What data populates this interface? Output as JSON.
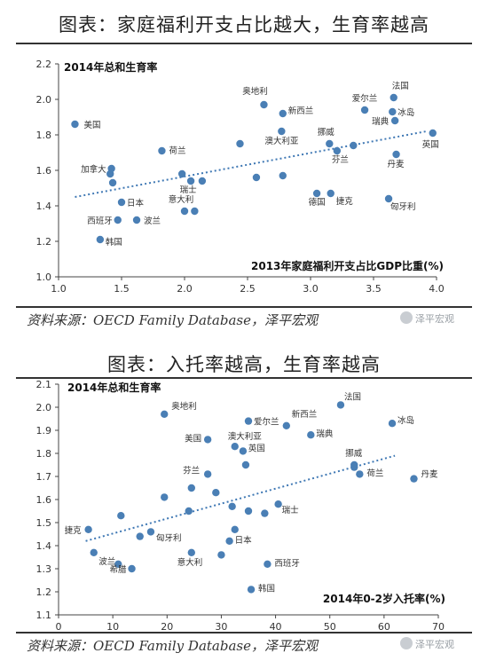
{
  "panel1": {
    "title": "图表：家庭福利开支占比越大，生育率越高",
    "source": "资料来源：OECD Family Database，泽平宏观"
  },
  "panel2": {
    "title": "图表：入托率越高，生育率越高",
    "source": "资料来源：OECD Family Database，泽平宏观"
  },
  "watermark": "泽平宏观",
  "colors": {
    "point": "#4a7fb5",
    "trend": "#3f78b4",
    "axis": "#444444"
  },
  "chart_data": [
    {
      "type": "scatter",
      "ylabel": "2014年总和生育率",
      "xlabel": "2013年家庭福利开支占比GDP比重(%)",
      "xlim": [
        1.0,
        4.0
      ],
      "ylim": [
        1.0,
        2.2
      ],
      "xticks": [
        "1.0",
        "1.5",
        "2.0",
        "2.5",
        "3.0",
        "3.5",
        "4.0"
      ],
      "yticks": [
        "1.0",
        "1.2",
        "1.4",
        "1.6",
        "1.8",
        "2.0",
        "2.2"
      ],
      "trendline": {
        "x": [
          1.13,
          3.92
        ],
        "y": [
          1.45,
          1.82
        ]
      },
      "points": [
        {
          "x": 1.13,
          "y": 1.86,
          "label": "美国"
        },
        {
          "x": 1.42,
          "y": 1.61,
          "label": "加拿大"
        },
        {
          "x": 1.41,
          "y": 1.58,
          "label": ""
        },
        {
          "x": 1.43,
          "y": 1.53,
          "label": ""
        },
        {
          "x": 1.5,
          "y": 1.42,
          "label": "日本"
        },
        {
          "x": 1.47,
          "y": 1.32,
          "label": "西班牙"
        },
        {
          "x": 1.33,
          "y": 1.21,
          "label": "韩国"
        },
        {
          "x": 1.62,
          "y": 1.32,
          "label": "波兰"
        },
        {
          "x": 1.82,
          "y": 1.71,
          "label": "荷兰"
        },
        {
          "x": 1.98,
          "y": 1.58,
          "label": ""
        },
        {
          "x": 2.05,
          "y": 1.54,
          "label": "瑞士"
        },
        {
          "x": 2.14,
          "y": 1.54,
          "label": ""
        },
        {
          "x": 2.0,
          "y": 1.37,
          "label": "意大利"
        },
        {
          "x": 2.08,
          "y": 1.37,
          "label": ""
        },
        {
          "x": 2.44,
          "y": 1.75,
          "label": ""
        },
        {
          "x": 2.57,
          "y": 1.56,
          "label": ""
        },
        {
          "x": 2.63,
          "y": 1.97,
          "label": "奥地利"
        },
        {
          "x": 2.78,
          "y": 1.92,
          "label": "新西兰"
        },
        {
          "x": 2.77,
          "y": 1.82,
          "label": "澳大利亚"
        },
        {
          "x": 2.78,
          "y": 1.57,
          "label": ""
        },
        {
          "x": 3.05,
          "y": 1.47,
          "label": "德国"
        },
        {
          "x": 3.16,
          "y": 1.47,
          "label": "捷克"
        },
        {
          "x": 3.15,
          "y": 1.75,
          "label": "挪威"
        },
        {
          "x": 3.21,
          "y": 1.71,
          "label": "芬兰"
        },
        {
          "x": 3.34,
          "y": 1.74,
          "label": ""
        },
        {
          "x": 3.43,
          "y": 1.94,
          "label": "爱尔兰"
        },
        {
          "x": 3.66,
          "y": 2.01,
          "label": "法国"
        },
        {
          "x": 3.65,
          "y": 1.93,
          "label": "冰岛"
        },
        {
          "x": 3.67,
          "y": 1.88,
          "label": "瑞典"
        },
        {
          "x": 3.68,
          "y": 1.69,
          "label": "丹麦"
        },
        {
          "x": 3.62,
          "y": 1.44,
          "label": "匈牙利"
        },
        {
          "x": 3.97,
          "y": 1.81,
          "label": "英国"
        }
      ]
    },
    {
      "type": "scatter",
      "ylabel": "2014年总和生育率",
      "xlabel": "2014年0-2岁入托率(%)",
      "xlim": [
        0,
        70
      ],
      "ylim": [
        1.1,
        2.1
      ],
      "xticks": [
        "0",
        "10",
        "20",
        "30",
        "40",
        "50",
        "60",
        "70"
      ],
      "yticks": [
        "1.1",
        "1.2",
        "1.3",
        "1.4",
        "1.5",
        "1.6",
        "1.7",
        "1.8",
        "1.9",
        "2.0",
        "2.1"
      ],
      "trendline": {
        "x": [
          5,
          62
        ],
        "y": [
          1.42,
          1.79
        ]
      },
      "points": [
        {
          "x": 5.5,
          "y": 1.47,
          "label": "捷克"
        },
        {
          "x": 6.5,
          "y": 1.37,
          "label": ""
        },
        {
          "x": 11.0,
          "y": 1.32,
          "label": "波兰"
        },
        {
          "x": 11.5,
          "y": 1.53,
          "label": ""
        },
        {
          "x": 13.5,
          "y": 1.3,
          "label": "希腊"
        },
        {
          "x": 15.0,
          "y": 1.44,
          "label": ""
        },
        {
          "x": 17.0,
          "y": 1.46,
          "label": "匈牙利"
        },
        {
          "x": 19.5,
          "y": 1.61,
          "label": ""
        },
        {
          "x": 19.5,
          "y": 1.97,
          "label": "奥地利"
        },
        {
          "x": 24.0,
          "y": 1.55,
          "label": ""
        },
        {
          "x": 24.5,
          "y": 1.65,
          "label": ""
        },
        {
          "x": 24.5,
          "y": 1.37,
          "label": "意大利"
        },
        {
          "x": 27.5,
          "y": 1.71,
          "label": "芬兰"
        },
        {
          "x": 27.5,
          "y": 1.86,
          "label": "美国"
        },
        {
          "x": 29.0,
          "y": 1.63,
          "label": ""
        },
        {
          "x": 30.0,
          "y": 1.36,
          "label": ""
        },
        {
          "x": 31.5,
          "y": 1.42,
          "label": "日本"
        },
        {
          "x": 32.0,
          "y": 1.57,
          "label": ""
        },
        {
          "x": 32.5,
          "y": 1.47,
          "label": ""
        },
        {
          "x": 32.5,
          "y": 1.83,
          "label": "澳大利亚"
        },
        {
          "x": 34.0,
          "y": 1.81,
          "label": "英国"
        },
        {
          "x": 34.5,
          "y": 1.75,
          "label": ""
        },
        {
          "x": 35.0,
          "y": 1.94,
          "label": "爱尔兰"
        },
        {
          "x": 35.0,
          "y": 1.55,
          "label": ""
        },
        {
          "x": 35.5,
          "y": 1.21,
          "label": "韩国"
        },
        {
          "x": 38.0,
          "y": 1.54,
          "label": ""
        },
        {
          "x": 38.5,
          "y": 1.32,
          "label": "西班牙"
        },
        {
          "x": 40.5,
          "y": 1.58,
          "label": "瑞士"
        },
        {
          "x": 42.0,
          "y": 1.92,
          "label": "新西兰"
        },
        {
          "x": 46.5,
          "y": 1.88,
          "label": "瑞典"
        },
        {
          "x": 52.0,
          "y": 2.01,
          "label": "法国"
        },
        {
          "x": 54.5,
          "y": 1.75,
          "label": "挪威"
        },
        {
          "x": 54.5,
          "y": 1.74,
          "label": ""
        },
        {
          "x": 55.5,
          "y": 1.71,
          "label": "荷兰"
        },
        {
          "x": 61.5,
          "y": 1.93,
          "label": "冰岛"
        },
        {
          "x": 65.5,
          "y": 1.69,
          "label": "丹麦"
        }
      ]
    }
  ]
}
